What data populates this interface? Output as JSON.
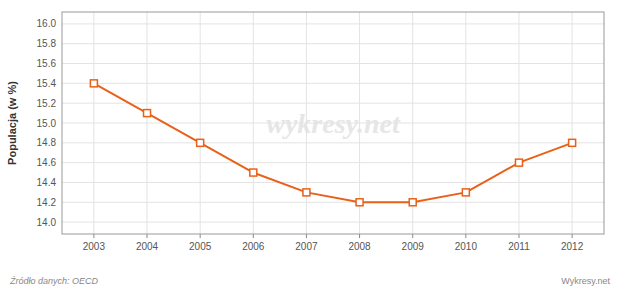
{
  "chart_data": {
    "type": "line",
    "y_label": "Populacja (w %)",
    "annotations": [
      "Źródło danych:  OECD",
      "Wykresy.net",
      "wykresy.net"
    ],
    "x": [
      2003,
      2004,
      2005,
      2006,
      2007,
      2008,
      2009,
      2010,
      2011,
      2012
    ],
    "values": [
      15.4,
      15.1,
      14.8,
      14.5,
      14.3,
      14.2,
      14.2,
      14.3,
      14.6,
      14.8
    ],
    "color": "#e8611a",
    "marker": "square",
    "xlim": [
      2002.4,
      2012.6
    ],
    "xticks": [
      2003,
      2004,
      2005,
      2006,
      2007,
      2008,
      2009,
      2010,
      2011,
      2012
    ],
    "ylim": [
      13.88,
      16.12
    ],
    "yticks": [
      {
        "value": 14.0,
        "label": "14.0"
      },
      14.2,
      14.4,
      14.6,
      14.8,
      {
        "value": 15.0,
        "label": "15.0"
      },
      15.2,
      15.4,
      15.6,
      15.8,
      {
        "value": 16.0,
        "label": "16.0"
      }
    ],
    "grid": true
  }
}
